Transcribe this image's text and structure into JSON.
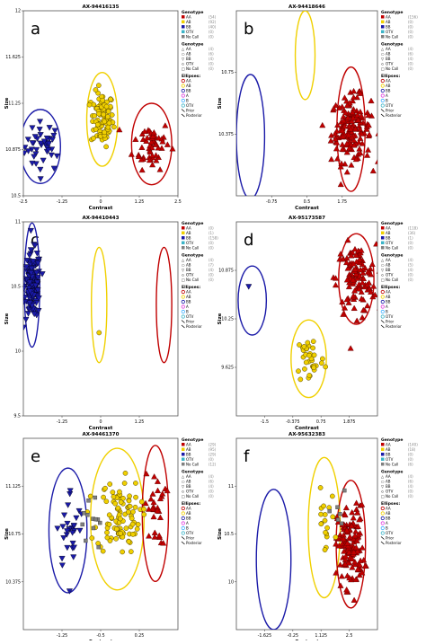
{
  "legend_labels": {
    "genotype": "Genotype",
    "ellipses": "Ellipses:",
    "classes": [
      "AA",
      "AB",
      "BB",
      "OTV",
      "No Call"
    ],
    "ellipse_items": [
      "AA",
      "AB",
      "BB",
      "A",
      "B",
      "OTV",
      "Prior",
      "Posterior"
    ]
  },
  "colors": {
    "AA": "#c00000",
    "AB": "#f0d000",
    "BB": "#1a1aa8",
    "OTV": "#3cb4c8",
    "NoCall": "#808080",
    "A": "#e040e0",
    "B": "#40b0ff",
    "marker_AA": "triangle-up",
    "marker_AB": "circle",
    "marker_BB": "triangle-down",
    "marker_NoCall": "square"
  },
  "chart_data": [
    {
      "type": "scatter",
      "panel": "a",
      "title": "AX-94416135",
      "xlabel": "Contrast",
      "ylabel": "Size",
      "xlim": [
        -2.5,
        2.5
      ],
      "ylim": [
        10.5,
        12
      ],
      "xticks": [
        "-2.5",
        "-1.25",
        "0",
        "1.25",
        "2.5"
      ],
      "yticks": [
        "10.5",
        "10.875",
        "11.25",
        "11.625",
        "12"
      ],
      "legend_counts": [
        [
          "(54)",
          "(92)",
          "(40)",
          "(0)",
          "(0)"
        ],
        [
          "(4)",
          "(6)",
          "(4)",
          "(0)",
          "(0)"
        ]
      ],
      "clusters": [
        {
          "class": "BB",
          "cx": -1.85,
          "cy": 10.9,
          "sx": 0.3,
          "sy": 0.1,
          "n": 40
        },
        {
          "class": "AB",
          "cx": 0.05,
          "cy": 11.12,
          "sx": 0.18,
          "sy": 0.11,
          "n": 92
        },
        {
          "class": "AA",
          "cx": 1.65,
          "cy": 10.92,
          "sx": 0.3,
          "sy": 0.1,
          "n": 54
        }
      ],
      "ellipses": [
        {
          "class": "BB",
          "cx": -1.95,
          "cy": 10.9,
          "rx": 0.65,
          "ry": 0.3
        },
        {
          "class": "AB",
          "cx": 0.05,
          "cy": 11.12,
          "rx": 0.5,
          "ry": 0.38
        },
        {
          "class": "AA",
          "cx": 1.65,
          "cy": 10.92,
          "rx": 0.65,
          "ry": 0.33
        }
      ]
    },
    {
      "type": "scatter",
      "panel": "b",
      "title": "AX-94418646",
      "xlabel": "Contrast",
      "ylabel": "Size",
      "xlim": [
        -1.5,
        2.5
      ],
      "ylim": [
        10,
        11.25
      ],
      "xticks": [
        "-0.75",
        "0.5",
        "1.75"
      ],
      "yticks": [
        "10.375",
        "10.75"
      ],
      "legend_counts": [
        [
          "(156)",
          "(0)",
          "(0)",
          "(0)",
          "(0)"
        ],
        [
          "(4)",
          "(6)",
          "(4)",
          "(0)",
          "(0)"
        ]
      ],
      "clusters": [
        {
          "class": "AA",
          "cx": 1.75,
          "cy": 10.45,
          "sx": 0.28,
          "sy": 0.11,
          "n": 156
        }
      ],
      "ellipses": [
        {
          "class": "BB",
          "cx": -1.1,
          "cy": 10.4,
          "rx": 0.4,
          "ry": 0.42
        },
        {
          "class": "AB",
          "cx": 0.45,
          "cy": 10.95,
          "rx": 0.28,
          "ry": 0.3
        },
        {
          "class": "AA",
          "cx": 1.75,
          "cy": 10.45,
          "rx": 0.4,
          "ry": 0.42
        }
      ]
    },
    {
      "type": "scatter",
      "panel": "c",
      "title": "AX-94410443",
      "xlabel": "Contrast",
      "ylabel": "Size",
      "xlim": [
        -2.5,
        2.5
      ],
      "ylim": [
        9.5,
        11.25
      ],
      "xticks": [
        "-1.25",
        "0",
        "1.25"
      ],
      "yticks": [
        "9.5",
        "10",
        "10.5",
        "11"
      ],
      "legend_counts": [
        [
          "(0)",
          "(1)",
          "(158)",
          "(0)",
          "(0)"
        ],
        [
          "(4)",
          "(7)",
          "(4)",
          "(0)",
          "(0)"
        ]
      ],
      "clusters": [
        {
          "class": "BB",
          "cx": -2.2,
          "cy": 10.68,
          "sx": 0.13,
          "sy": 0.15,
          "n": 158
        }
      ],
      "points": [
        {
          "class": "AB",
          "x": -0.05,
          "y": 10.25
        }
      ],
      "ellipses": [
        {
          "class": "BB",
          "cx": -2.22,
          "cy": 10.68,
          "rx": 0.25,
          "ry": 0.56
        },
        {
          "class": "AB",
          "cx": -0.05,
          "cy": 10.5,
          "rx": 0.25,
          "ry": 0.52
        },
        {
          "class": "AA",
          "cx": 2.05,
          "cy": 10.5,
          "rx": 0.25,
          "ry": 0.52
        }
      ]
    },
    {
      "type": "scatter",
      "panel": "d",
      "title": "AX-95173587",
      "xlabel": "Contrast",
      "ylabel": "Size",
      "xlim": [
        -1.5,
        2.5
      ],
      "ylim": [
        9.35,
        11.15
      ],
      "xticks": [
        "-1.5",
        "-0.375",
        "0.75",
        "1.875"
      ],
      "yticks": [
        "9.625",
        "10.25",
        "10.875"
      ],
      "legend_counts": [
        [
          "(118)",
          "(36)",
          "(1)",
          "(0)",
          "(0)"
        ],
        [
          "(4)",
          "(5)",
          "(4)",
          "(0)",
          "(0)"
        ]
      ],
      "clusters": [
        {
          "class": "AA",
          "cx": 1.9,
          "cy": 10.62,
          "sx": 0.28,
          "sy": 0.16,
          "n": 118
        },
        {
          "class": "AB",
          "cx": 0.6,
          "cy": 9.88,
          "sx": 0.2,
          "sy": 0.12,
          "n": 36
        }
      ],
      "points": [
        {
          "class": "BB",
          "x": -1.15,
          "y": 10.55
        }
      ],
      "ellipses": [
        {
          "class": "BB",
          "cx": -1.05,
          "cy": 10.42,
          "rx": 0.4,
          "ry": 0.32
        },
        {
          "class": "AB",
          "cx": 0.55,
          "cy": 9.88,
          "rx": 0.5,
          "ry": 0.36
        },
        {
          "class": "AA",
          "cx": 1.9,
          "cy": 10.62,
          "rx": 0.5,
          "ry": 0.42
        }
      ]
    },
    {
      "type": "scatter",
      "panel": "e",
      "title": "AX-94461370",
      "xlabel": "Contrast",
      "ylabel": "Size",
      "xlim": [
        -2,
        0.6
      ],
      "ylim": [
        9.9,
        11.25
      ],
      "xticks": [
        "-1.25",
        "-0.5",
        "0.25"
      ],
      "yticks": [
        "10.375",
        "10.75",
        "11.125"
      ],
      "legend_counts": [
        [
          "(29)",
          "(95)",
          "(29)",
          "(0)",
          "(12)"
        ],
        [
          "(4)",
          "(6)",
          "(4)",
          "(0)",
          "(0)"
        ]
      ],
      "clusters": [
        {
          "class": "BB",
          "cx": -1.2,
          "cy": 10.6,
          "sx": 0.12,
          "sy": 0.15,
          "n": 29
        },
        {
          "class": "AB",
          "cx": -0.4,
          "cy": 10.7,
          "sx": 0.18,
          "sy": 0.13,
          "n": 95
        },
        {
          "class": "AA",
          "cx": 0.22,
          "cy": 10.75,
          "sx": 0.09,
          "sy": 0.13,
          "n": 29
        },
        {
          "class": "NoCall",
          "cx": -0.85,
          "cy": 10.65,
          "sx": 0.08,
          "sy": 0.13,
          "n": 12
        }
      ],
      "ellipses": [
        {
          "class": "BB",
          "cx": -1.25,
          "cy": 10.6,
          "rx": 0.32,
          "ry": 0.44
        },
        {
          "class": "AB",
          "cx": -0.42,
          "cy": 10.68,
          "rx": 0.45,
          "ry": 0.5
        },
        {
          "class": "AA",
          "cx": 0.22,
          "cy": 10.72,
          "rx": 0.22,
          "ry": 0.48
        }
      ]
    },
    {
      "type": "scatter",
      "panel": "f",
      "title": "AX-95632383",
      "xlabel": "Contrast",
      "ylabel": "Size",
      "xlim": [
        -2.8,
        2.5
      ],
      "ylim": [
        9.75,
        11.25
      ],
      "xticks": [
        "-1.625",
        "-0.25",
        "1.125",
        "2.5"
      ],
      "yticks": [
        "10",
        "10.5",
        "11"
      ],
      "legend_counts": [
        [
          "(140)",
          "(18)",
          "(0)",
          "(0)",
          "(6)"
        ],
        [
          "(4)",
          "(6)",
          "(4)",
          "(0)",
          "(0)"
        ]
      ],
      "clusters": [
        {
          "class": "AA",
          "cx": 1.5,
          "cy": 10.4,
          "sx": 0.25,
          "sy": 0.16,
          "n": 140
        },
        {
          "class": "AB",
          "cx": 0.5,
          "cy": 10.6,
          "sx": 0.2,
          "sy": 0.12,
          "n": 18
        },
        {
          "class": "NoCall",
          "cx": 1.0,
          "cy": 10.6,
          "sx": 0.1,
          "sy": 0.2,
          "n": 6
        }
      ],
      "ellipses": [
        {
          "class": "BB",
          "cx": -1.4,
          "cy": 10.3,
          "rx": 0.65,
          "ry": 0.55
        },
        {
          "class": "AB",
          "cx": 0.5,
          "cy": 10.55,
          "rx": 0.6,
          "ry": 0.55
        },
        {
          "class": "AA",
          "cx": 1.5,
          "cy": 10.42,
          "rx": 0.55,
          "ry": 0.5
        }
      ]
    }
  ]
}
